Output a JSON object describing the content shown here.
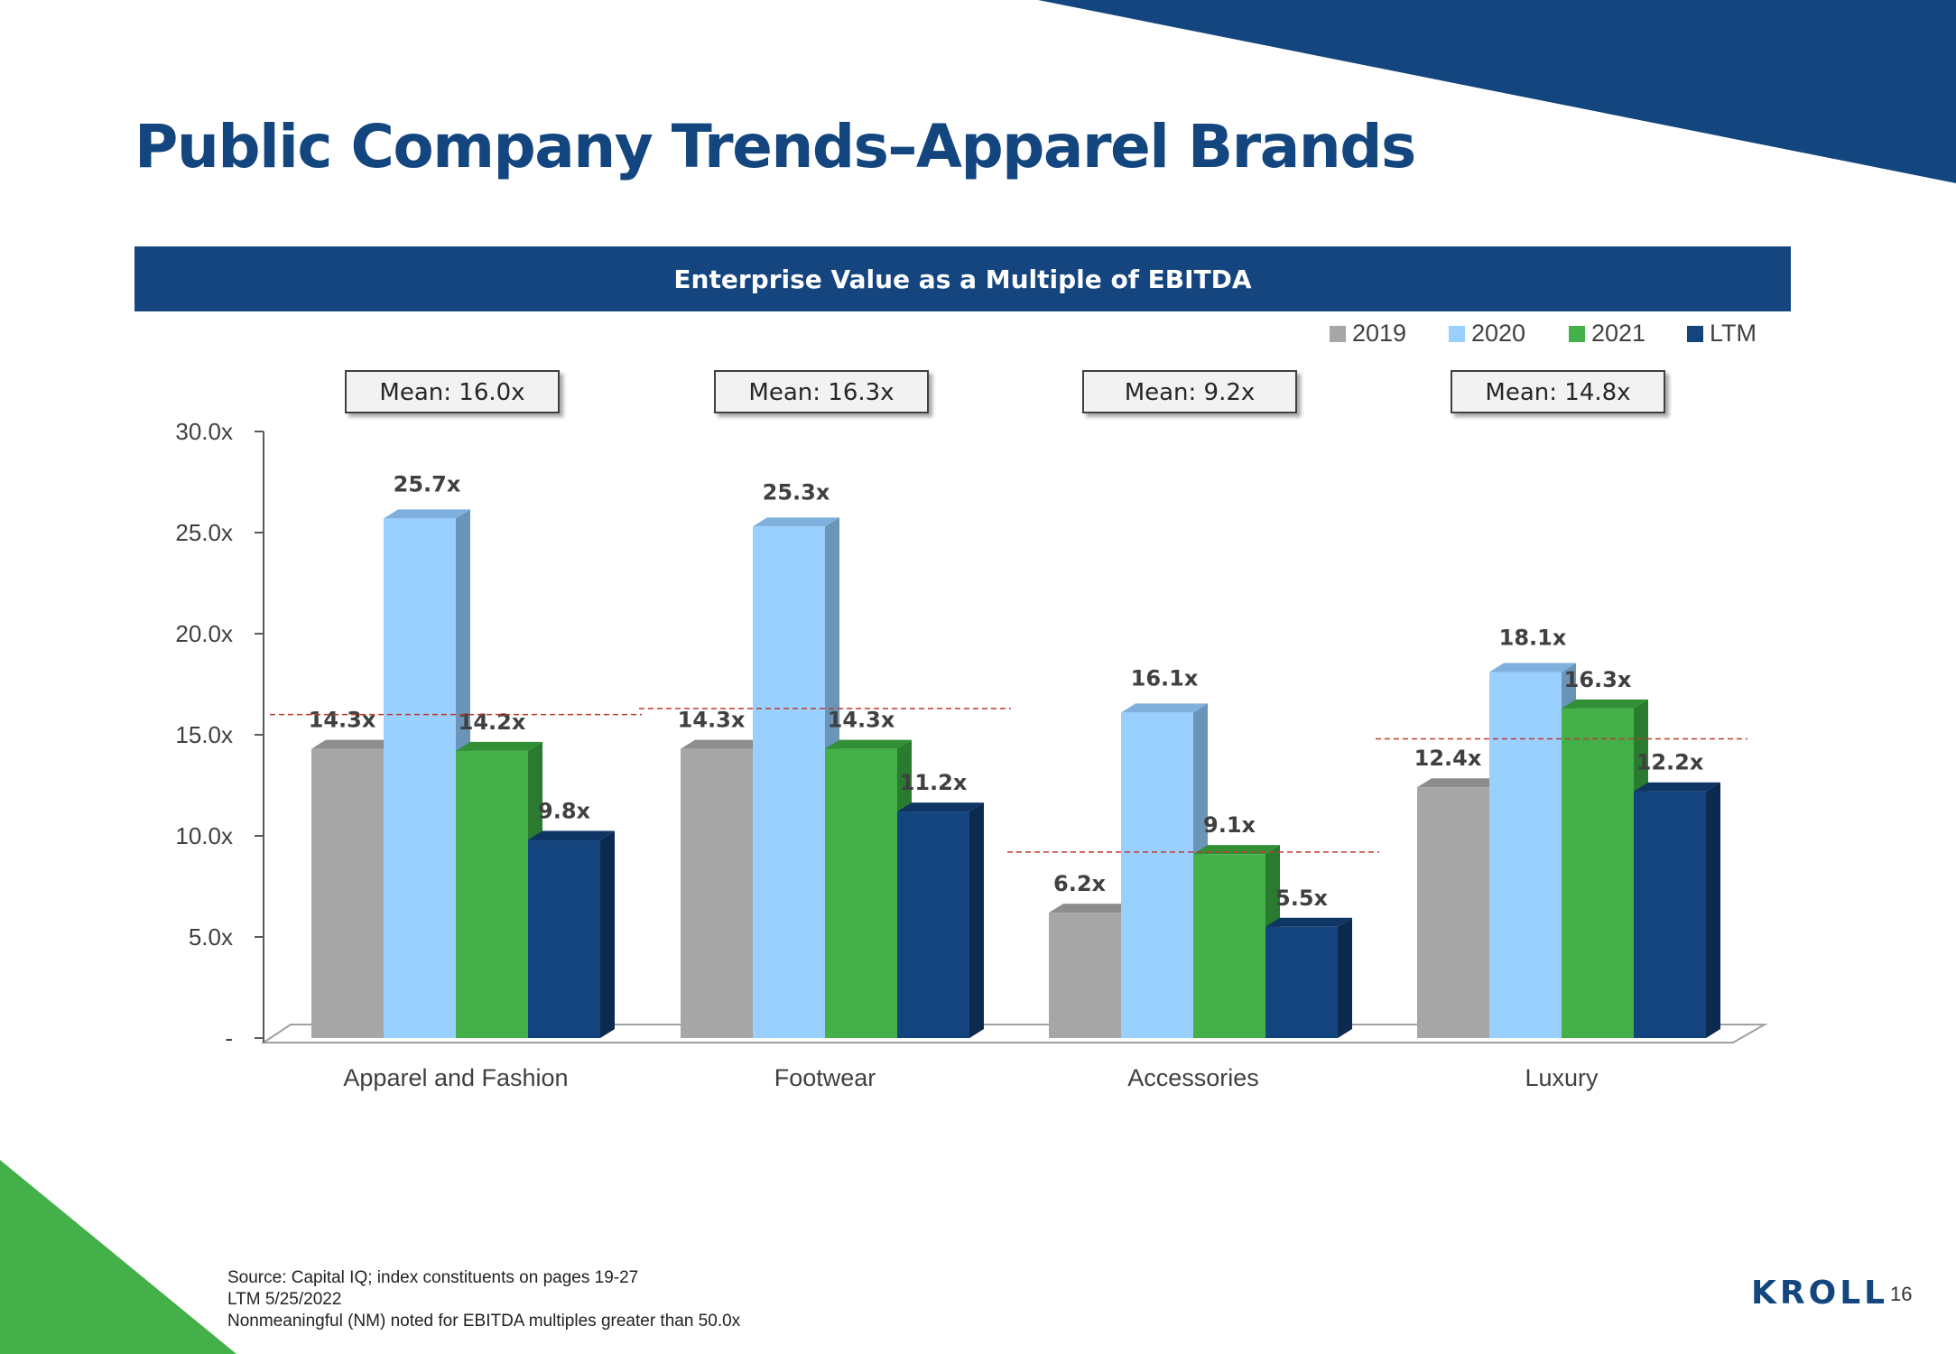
{
  "page": {
    "title": "Public Company Trends–Apparel Brands",
    "banner": "Enterprise Value as a Multiple of EBITDA",
    "footnotes": [
      "Source: Capital IQ; index constituents on pages 19-27",
      "LTM 5/25/2022",
      "Nonmeaningful (NM) noted for EBITDA multiples greater than 50.0x"
    ],
    "logo": "KROLL",
    "page_number": "16"
  },
  "colors": {
    "brand_navy": "#13457e",
    "brand_green": "#43b049",
    "s2019": "#a6a6a6",
    "s2020": "#99d0ff",
    "s2021": "#43b049",
    "sLTM": "#14447e",
    "mean_line": "#c0392b"
  },
  "chart_data": {
    "type": "bar",
    "title": "Enterprise Value as a Multiple of EBITDA",
    "categories": [
      "Apparel and Fashion",
      "Footwear",
      "Accessories",
      "Luxury"
    ],
    "series": [
      {
        "name": "2019",
        "values": [
          14.3,
          14.3,
          6.2,
          12.4
        ],
        "labels": [
          "14.3x",
          "14.3x",
          "6.2x",
          "12.4x"
        ]
      },
      {
        "name": "2020",
        "values": [
          25.7,
          25.3,
          16.1,
          18.1
        ],
        "labels": [
          "25.7x",
          "25.3x",
          "16.1x",
          "18.1x"
        ]
      },
      {
        "name": "2021",
        "values": [
          14.2,
          14.3,
          9.1,
          16.3
        ],
        "labels": [
          "14.2x",
          "14.3x",
          "9.1x",
          "16.3x"
        ]
      },
      {
        "name": "LTM",
        "values": [
          9.8,
          11.2,
          5.5,
          12.2
        ],
        "labels": [
          "9.8x",
          "11.2x",
          "5.5x",
          "12.2x"
        ]
      }
    ],
    "means": [
      16.0,
      16.3,
      9.2,
      14.8
    ],
    "mean_labels": [
      "Mean: 16.0x",
      "Mean: 16.3x",
      "Mean: 9.2x",
      "Mean: 14.8x"
    ],
    "ylim": [
      0,
      30
    ],
    "yticks": [
      0,
      5,
      10,
      15,
      20,
      25,
      30
    ],
    "ytick_labels": [
      "-",
      "5.0x",
      "10.0x",
      "15.0x",
      "20.0x",
      "25.0x",
      "30.0x"
    ],
    "legend_position": "top-right",
    "xlabel": "",
    "ylabel": ""
  }
}
